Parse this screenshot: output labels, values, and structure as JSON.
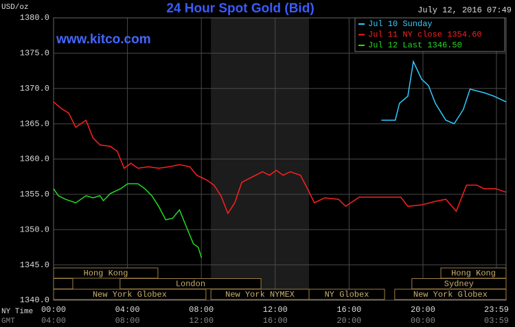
{
  "chart_data": {
    "type": "line",
    "title": "24 Hour Spot Gold (Bid)",
    "y_unit": "USD/oz",
    "timestamp": "July 12, 2016 07:49",
    "watermark": "www.kitco.com",
    "legend": "top-right",
    "grid": true,
    "xlim": [
      0,
      24.5
    ],
    "ylim": [
      1340,
      1380
    ],
    "yticks": [
      {
        "value": 1340,
        "label": "1340.0"
      },
      {
        "value": 1345,
        "label": "1345.0"
      },
      {
        "value": 1350,
        "label": "1350.0"
      },
      {
        "value": 1355,
        "label": "1355.0"
      },
      {
        "value": 1360,
        "label": "1360.0"
      },
      {
        "value": 1365,
        "label": "1365.0"
      },
      {
        "value": 1370,
        "label": "1370.0"
      },
      {
        "value": 1375,
        "label": "1375.0"
      },
      {
        "value": 1380,
        "label": "1380.0"
      }
    ],
    "x_row_label": "NY Time",
    "xticks": [
      {
        "value": 0,
        "label": "00:00"
      },
      {
        "value": 4,
        "label": "04:00"
      },
      {
        "value": 8,
        "label": "08:00"
      },
      {
        "value": 12,
        "label": "12:00"
      },
      {
        "value": 16,
        "label": "16:00"
      },
      {
        "value": 20,
        "label": "20:00"
      },
      {
        "value": 23.98,
        "label": "23:59"
      }
    ],
    "x2_row_label": "GMT",
    "x2tick_labels": [
      "04:00",
      "08:00",
      "12:00",
      "16:00",
      "20:00",
      "00:00",
      "03:59"
    ],
    "shade": [
      8.52,
      13.83
    ],
    "session_rows": [
      [
        {
          "label": "Hong Kong",
          "start": 0,
          "end": 5.65
        },
        {
          "label": "Hong Kong",
          "start": 20.97,
          "end": 24.5
        }
      ],
      [
        {
          "label": null,
          "start": 0,
          "end": 1.04
        },
        {
          "label": "London",
          "start": 3.6,
          "end": 11.23
        },
        {
          "label": "Sydney",
          "start": 19.4,
          "end": 24.5
        }
      ],
      [
        {
          "label": "New York Globex",
          "start": 0,
          "end": 8.25
        },
        {
          "label": "New York NYMEX",
          "start": 8.52,
          "end": 13.83
        },
        {
          "label": "NY Globex",
          "start": 13.83,
          "end": 17.92
        },
        {
          "label": "New York Globex",
          "start": 18.47,
          "end": 24.5
        }
      ]
    ],
    "series": [
      {
        "name": "Jul 10 Sunday",
        "color": "#33ccff",
        "x": [
          17.75,
          18.5,
          18.73,
          19.18,
          19.48,
          19.93,
          20.3,
          20.67,
          21.24,
          21.69,
          22.18,
          22.55,
          23.3,
          23.85,
          24.5
        ],
        "values": [
          1365.5,
          1365.5,
          1367.9,
          1368.9,
          1373.8,
          1371.3,
          1370.4,
          1367.9,
          1365.5,
          1365.0,
          1367.0,
          1369.9,
          1369.4,
          1368.9,
          1368.1
        ]
      },
      {
        "name": "Jul 11 NY close 1354.60",
        "color": "#ff2020",
        "x": [
          0,
          0.45,
          0.82,
          1.2,
          1.76,
          2.13,
          2.51,
          3.07,
          3.45,
          3.82,
          4.19,
          4.57,
          5.13,
          5.69,
          6.25,
          6.82,
          7.38,
          7.75,
          8.31,
          8.69,
          9.06,
          9.44,
          9.81,
          10.19,
          10.56,
          10.94,
          11.31,
          11.69,
          12.06,
          12.43,
          12.81,
          13.37,
          13.75,
          14.12,
          14.68,
          15.43,
          15.81,
          16.55,
          17.3,
          18.05,
          18.8,
          19.18,
          19.93,
          20.67,
          21.24,
          21.8,
          22.36,
          22.92,
          23.3,
          23.95,
          24.5
        ],
        "values": [
          1368.1,
          1367.1,
          1366.5,
          1364.5,
          1365.5,
          1363.0,
          1362.0,
          1361.8,
          1361.1,
          1358.7,
          1359.4,
          1358.7,
          1358.9,
          1358.7,
          1358.9,
          1359.2,
          1358.9,
          1357.7,
          1357.0,
          1356.3,
          1354.8,
          1352.3,
          1353.8,
          1356.7,
          1357.2,
          1357.7,
          1358.2,
          1357.7,
          1358.4,
          1357.7,
          1358.2,
          1357.7,
          1355.8,
          1353.8,
          1354.5,
          1354.3,
          1353.3,
          1354.6,
          1354.6,
          1354.6,
          1354.6,
          1353.3,
          1353.5,
          1354.0,
          1354.3,
          1352.6,
          1356.3,
          1356.3,
          1355.8,
          1355.8,
          1355.3
        ]
      },
      {
        "name": "Jul 12 Last 1346.50",
        "color": "#22dd22",
        "x": [
          0,
          0.26,
          0.64,
          1.2,
          1.76,
          2.13,
          2.51,
          2.7,
          3.07,
          3.63,
          4.01,
          4.57,
          4.94,
          5.32,
          5.69,
          6.07,
          6.44,
          6.82,
          7.19,
          7.57,
          7.83,
          8.01
        ],
        "values": [
          1355.8,
          1354.8,
          1354.3,
          1353.8,
          1354.8,
          1354.5,
          1354.8,
          1354.1,
          1355.1,
          1355.8,
          1356.5,
          1356.5,
          1355.8,
          1354.8,
          1353.3,
          1351.4,
          1351.6,
          1352.8,
          1350.4,
          1348.0,
          1347.5,
          1346.0
        ]
      }
    ]
  }
}
